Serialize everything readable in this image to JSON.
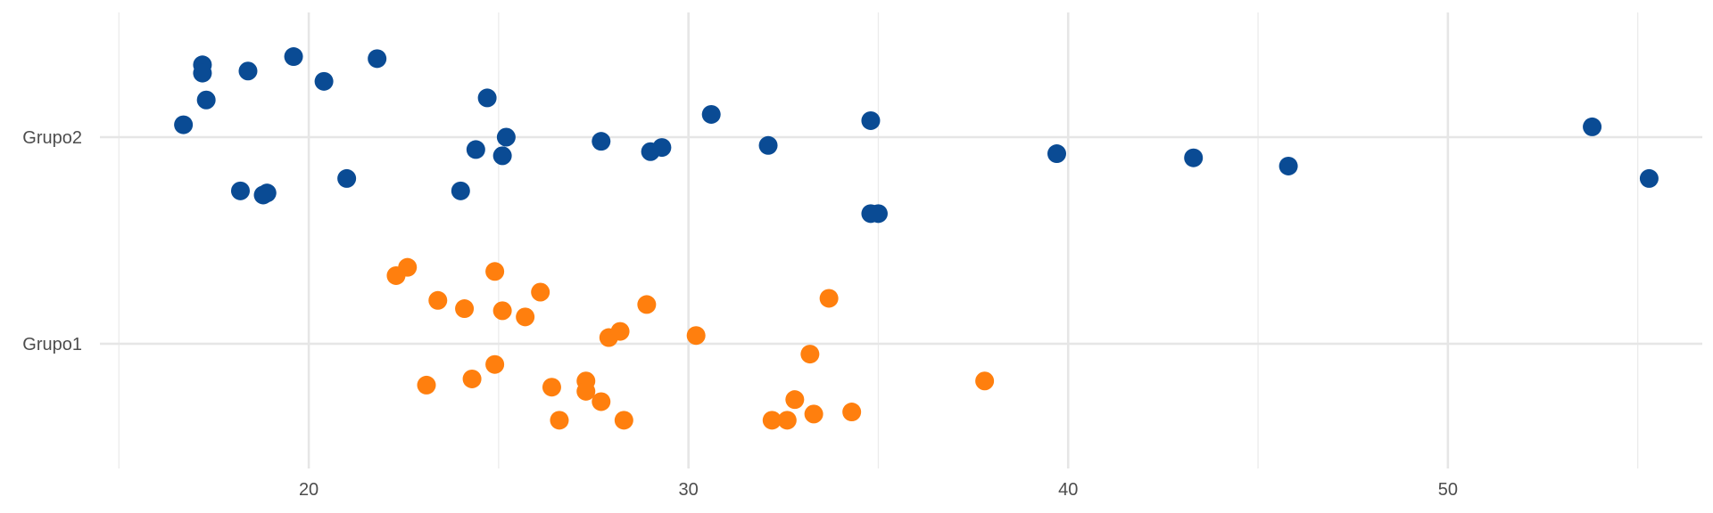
{
  "chart_data": {
    "type": "scatter",
    "title": "",
    "xlabel": "",
    "ylabel": "",
    "xlim": [
      14.5,
      56.7
    ],
    "x_ticks": [
      20,
      30,
      40,
      50
    ],
    "x_tick_labels": [
      "20",
      "30",
      "40",
      "50"
    ],
    "x_minor_ticks": [
      15,
      25,
      35,
      45,
      55
    ],
    "y_categories": [
      "Grupo1",
      "Grupo2"
    ],
    "grid": true,
    "legend": "none",
    "series": [
      {
        "category": "Grupo2",
        "color": "#0a4b94",
        "points": [
          {
            "x": 16.7,
            "y": 0.06
          },
          {
            "x": 17.2,
            "y": 0.35
          },
          {
            "x": 17.2,
            "y": 0.31
          },
          {
            "x": 17.3,
            "y": 0.18
          },
          {
            "x": 18.2,
            "y": -0.26
          },
          {
            "x": 18.4,
            "y": 0.32
          },
          {
            "x": 18.8,
            "y": -0.28
          },
          {
            "x": 18.9,
            "y": -0.27
          },
          {
            "x": 19.6,
            "y": 0.39
          },
          {
            "x": 20.4,
            "y": 0.27
          },
          {
            "x": 21.0,
            "y": -0.2
          },
          {
            "x": 21.8,
            "y": 0.38
          },
          {
            "x": 24.0,
            "y": -0.26
          },
          {
            "x": 24.4,
            "y": -0.06
          },
          {
            "x": 24.7,
            "y": 0.19
          },
          {
            "x": 25.1,
            "y": -0.09
          },
          {
            "x": 25.2,
            "y": 0.0
          },
          {
            "x": 27.7,
            "y": -0.02
          },
          {
            "x": 29.0,
            "y": -0.07
          },
          {
            "x": 29.3,
            "y": -0.05
          },
          {
            "x": 30.6,
            "y": 0.11
          },
          {
            "x": 32.1,
            "y": -0.04
          },
          {
            "x": 34.8,
            "y": 0.08
          },
          {
            "x": 34.8,
            "y": -0.37
          },
          {
            "x": 35.0,
            "y": -0.37
          },
          {
            "x": 39.7,
            "y": -0.08
          },
          {
            "x": 43.3,
            "y": -0.1
          },
          {
            "x": 45.8,
            "y": -0.14
          },
          {
            "x": 53.8,
            "y": 0.05
          },
          {
            "x": 55.3,
            "y": -0.2
          }
        ]
      },
      {
        "category": "Grupo1",
        "color": "#ff7f0e",
        "points": [
          {
            "x": 22.3,
            "y": 0.33
          },
          {
            "x": 22.6,
            "y": 0.37
          },
          {
            "x": 23.1,
            "y": -0.2
          },
          {
            "x": 23.4,
            "y": 0.21
          },
          {
            "x": 24.1,
            "y": 0.17
          },
          {
            "x": 24.3,
            "y": -0.17
          },
          {
            "x": 24.9,
            "y": 0.35
          },
          {
            "x": 24.9,
            "y": -0.1
          },
          {
            "x": 25.1,
            "y": 0.16
          },
          {
            "x": 25.7,
            "y": 0.13
          },
          {
            "x": 26.1,
            "y": 0.25
          },
          {
            "x": 26.4,
            "y": -0.21
          },
          {
            "x": 26.6,
            "y": -0.37
          },
          {
            "x": 27.3,
            "y": -0.18
          },
          {
            "x": 27.3,
            "y": -0.23
          },
          {
            "x": 27.7,
            "y": -0.28
          },
          {
            "x": 27.9,
            "y": 0.03
          },
          {
            "x": 28.2,
            "y": 0.06
          },
          {
            "x": 28.3,
            "y": -0.37
          },
          {
            "x": 28.9,
            "y": 0.19
          },
          {
            "x": 30.2,
            "y": 0.04
          },
          {
            "x": 32.2,
            "y": -0.37
          },
          {
            "x": 32.6,
            "y": -0.37
          },
          {
            "x": 32.8,
            "y": -0.27
          },
          {
            "x": 33.2,
            "y": -0.05
          },
          {
            "x": 33.3,
            "y": -0.34
          },
          {
            "x": 33.7,
            "y": 0.22
          },
          {
            "x": 34.3,
            "y": -0.33
          },
          {
            "x": 37.8,
            "y": -0.18
          }
        ]
      }
    ]
  }
}
